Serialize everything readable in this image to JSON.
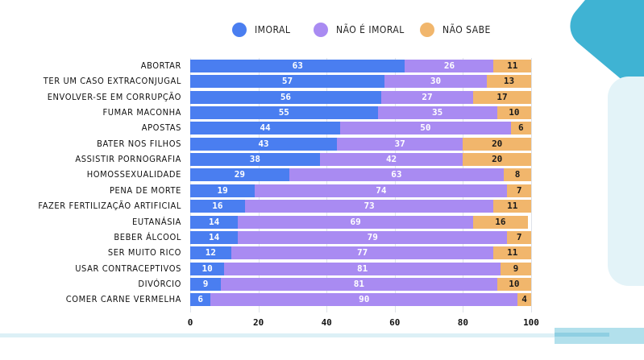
{
  "chart_data": {
    "type": "bar",
    "orientation": "horizontal",
    "stacked": true,
    "title": "",
    "xlabel": "",
    "ylabel": "",
    "xlim": [
      0,
      100
    ],
    "xticks": [
      "0",
      "20",
      "40",
      "60",
      "80",
      "100"
    ],
    "grid": true,
    "legend_position": "top-center",
    "categories": [
      "ABORTAR",
      "TER UM CASO EXTRACONJUGAL",
      "ENVOLVER-SE EM CORRUPÇÃO",
      "FUMAR MACONHA",
      "APOSTAS",
      "BATER NOS FILHOS",
      "ASSISTIR PORNOGRAFIA",
      "HOMOSSEXUALIDADE",
      "PENA DE MORTE",
      "FAZER FERTILIZAÇÃO ARTIFICIAL",
      "EUTANÁSIA",
      "BEBER ÁLCOOL",
      "SER MUITO RICO",
      "USAR CONTRACEPTIVOS",
      "DIVÓRCIO",
      "COMER CARNE VERMELHA"
    ],
    "series": [
      {
        "name": "IMORAL",
        "color": "#4a7ef0",
        "label_color": "#ffffff",
        "values": [
          63,
          57,
          56,
          55,
          44,
          43,
          38,
          29,
          19,
          16,
          14,
          14,
          12,
          10,
          9,
          6
        ]
      },
      {
        "name": "NÃO É IMORAL",
        "color": "#a98bf2",
        "label_color": "#ffffff",
        "values": [
          26,
          30,
          27,
          35,
          50,
          37,
          42,
          63,
          74,
          73,
          69,
          79,
          77,
          81,
          81,
          90
        ]
      },
      {
        "name": "NÃO SABE",
        "color": "#f1b66c",
        "label_color": "#1a1a1a",
        "values": [
          11,
          13,
          17,
          10,
          6,
          20,
          20,
          8,
          7,
          11,
          16,
          7,
          11,
          9,
          10,
          4
        ]
      }
    ]
  }
}
